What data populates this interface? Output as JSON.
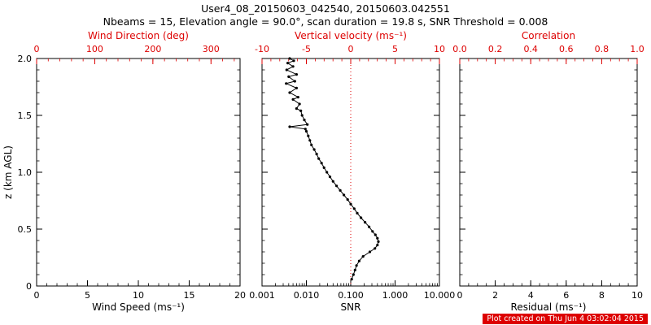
{
  "header": {
    "title": "User4_08_20150603_042540, 20150603.042551",
    "subtitle": "Nbeams = 15, Elevation angle = 90.0°, scan duration = 19.8 s, SNR Threshold = 0.008"
  },
  "footer": {
    "text": "Plot created on Thu Jun 4 03:02:04 2015"
  },
  "colors": {
    "accent_red": "#dd0000",
    "axis_black": "#000000",
    "footer_bg": "#dd0000",
    "footer_text": "#ffffff"
  },
  "chart_data": [
    {
      "type": "line",
      "name": "wind-speed-panel",
      "bottom_axis": {
        "label": "Wind Speed (ms⁻¹)",
        "scale": "linear",
        "range": [
          0,
          20
        ],
        "major": [
          0,
          5,
          10,
          15,
          20
        ],
        "tick_labels": [
          "0",
          "5",
          "10",
          "15",
          "20"
        ],
        "minor_step": 1
      },
      "top_axis": {
        "label": "Wind Direction (deg)",
        "scale": "linear",
        "range": [
          0,
          350
        ],
        "major": [
          0,
          100,
          200,
          300
        ],
        "tick_labels": [
          "0",
          "100",
          "200",
          "300"
        ],
        "minor_step": 20,
        "color": "#dd0000"
      },
      "y_axis": {
        "label": "z (km AGL)",
        "range": [
          0,
          2
        ],
        "major": [
          0,
          0.5,
          1,
          1.5,
          2
        ],
        "tick_labels": [
          "0",
          "0.5",
          "1.0",
          "1.5",
          "2.0"
        ],
        "minor_step": 0.1,
        "show_labels": true
      },
      "series": []
    },
    {
      "type": "line",
      "name": "snr-panel",
      "bottom_axis": {
        "label": "SNR",
        "scale": "log",
        "range": [
          0.001,
          10
        ],
        "major": [
          0.001,
          0.01,
          0.1,
          1,
          10
        ],
        "tick_labels": [
          "0.001",
          "0.010",
          "0.100",
          "1.000",
          "10.000"
        ]
      },
      "top_axis": {
        "label": "Vertical velocity (ms⁻¹)",
        "scale": "linear",
        "range": [
          -10,
          10
        ],
        "major": [
          -10,
          -5,
          0,
          5,
          10
        ],
        "tick_labels": [
          "-10",
          "-5",
          "0",
          "5",
          "10"
        ],
        "minor_step": 1,
        "color": "#dd0000"
      },
      "y_axis": {
        "range": [
          0,
          2
        ],
        "major": [
          0,
          0.5,
          1,
          1.5,
          2
        ],
        "minor_step": 0.1,
        "show_labels": false
      },
      "ref_line": {
        "axis": "top",
        "value": 0,
        "style": "dotted",
        "color": "#dd0000"
      },
      "series": [
        {
          "name": "snr-profile",
          "color": "#000000",
          "marker": "circle",
          "points": [
            [
              0.105,
              0.06
            ],
            [
              0.115,
              0.1
            ],
            [
              0.125,
              0.14
            ],
            [
              0.135,
              0.18
            ],
            [
              0.155,
              0.22
            ],
            [
              0.19,
              0.26
            ],
            [
              0.27,
              0.3
            ],
            [
              0.35,
              0.33
            ],
            [
              0.4,
              0.36
            ],
            [
              0.42,
              0.39
            ],
            [
              0.4,
              0.42
            ],
            [
              0.36,
              0.45
            ],
            [
              0.31,
              0.48
            ],
            [
              0.26,
              0.52
            ],
            [
              0.21,
              0.56
            ],
            [
              0.17,
              0.6
            ],
            [
              0.14,
              0.64
            ],
            [
              0.12,
              0.68
            ],
            [
              0.1,
              0.72
            ],
            [
              0.085,
              0.76
            ],
            [
              0.07,
              0.8
            ],
            [
              0.058,
              0.84
            ],
            [
              0.048,
              0.88
            ],
            [
              0.04,
              0.92
            ],
            [
              0.034,
              0.96
            ],
            [
              0.029,
              1.0
            ],
            [
              0.025,
              1.04
            ],
            [
              0.022,
              1.08
            ],
            [
              0.019,
              1.12
            ],
            [
              0.017,
              1.16
            ],
            [
              0.015,
              1.2
            ],
            [
              0.013,
              1.24
            ],
            [
              0.012,
              1.28
            ],
            [
              0.011,
              1.32
            ],
            [
              0.01,
              1.36
            ],
            [
              0.0095,
              1.38
            ],
            [
              0.0042,
              1.4
            ],
            [
              0.0105,
              1.42
            ],
            [
              0.009,
              1.46
            ],
            [
              0.008,
              1.5
            ],
            [
              0.0075,
              1.54
            ],
            [
              0.006,
              1.56
            ],
            [
              0.007,
              1.6
            ],
            [
              0.005,
              1.64
            ],
            [
              0.0065,
              1.66
            ],
            [
              0.0042,
              1.7
            ],
            [
              0.006,
              1.74
            ],
            [
              0.0035,
              1.78
            ],
            [
              0.0055,
              1.8
            ],
            [
              0.004,
              1.84
            ],
            [
              0.006,
              1.86
            ],
            [
              0.0036,
              1.9
            ],
            [
              0.005,
              1.93
            ],
            [
              0.0038,
              1.96
            ],
            [
              0.0052,
              1.98
            ],
            [
              0.0042,
              2.0
            ]
          ]
        }
      ]
    },
    {
      "type": "line",
      "name": "residual-panel",
      "bottom_axis": {
        "label": "Residual (ms⁻¹)",
        "scale": "linear",
        "range": [
          0,
          10
        ],
        "major": [
          0,
          2,
          4,
          6,
          8,
          10
        ],
        "tick_labels": [
          "0",
          "2",
          "4",
          "6",
          "8",
          "10"
        ],
        "minor_step": 0.5
      },
      "top_axis": {
        "label": "Correlation",
        "scale": "linear",
        "range": [
          0,
          1
        ],
        "major": [
          0,
          0.2,
          0.4,
          0.6,
          0.8,
          1
        ],
        "tick_labels": [
          "0.0",
          "0.2",
          "0.4",
          "0.6",
          "0.8",
          "1.0"
        ],
        "minor_step": 0.05,
        "color": "#dd0000"
      },
      "y_axis": {
        "range": [
          0,
          2
        ],
        "major": [
          0,
          0.5,
          1,
          1.5,
          2
        ],
        "minor_step": 0.1,
        "show_labels": false
      },
      "series": []
    }
  ]
}
